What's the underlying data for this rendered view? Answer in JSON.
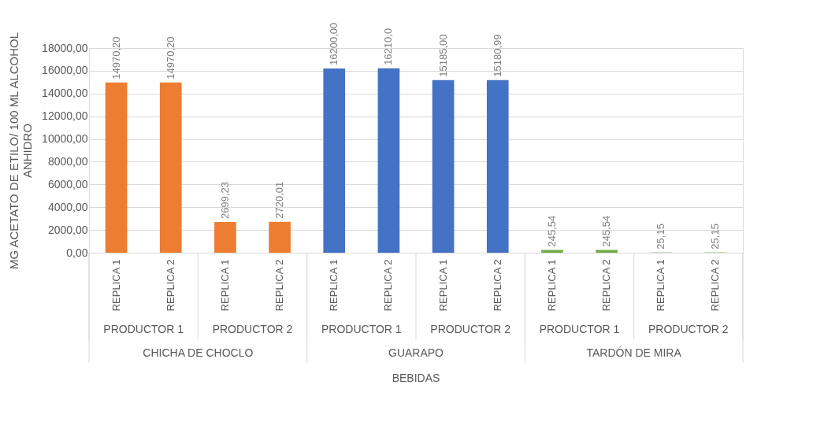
{
  "chart_data": {
    "type": "bar",
    "ylabel": "MG ACETATO DE ETILO/ 100 ML ALCOHOL ANHIDRO",
    "categories": [
      "REPLICA 1",
      "REPLICA 2",
      "REPLICA 1",
      "REPLICA 2",
      "REPLICA 1",
      "REPLICA 2",
      "REPLICA 1",
      "REPLICA 2",
      "REPLICA 1",
      "REPLICA 2",
      "REPLICA 1",
      "REPLICA 2"
    ],
    "series": [
      {
        "color": "#ed7d31",
        "values": [
          14970.2,
          14970.2,
          2699.23,
          2720.01,
          null,
          null,
          null,
          null,
          null,
          null,
          null,
          null
        ],
        "value_labels": [
          "14970,20",
          "14970,20",
          "2699,23",
          "2720,01",
          null,
          null,
          null,
          null,
          null,
          null,
          null,
          null
        ]
      },
      {
        "color": "#4472c4",
        "values": [
          null,
          null,
          null,
          null,
          16200.0,
          16210.0,
          15185.0,
          15180.99,
          null,
          null,
          null,
          null
        ],
        "value_labels": [
          null,
          null,
          null,
          null,
          "16200,00",
          "16210,0",
          "15185,00",
          "15180,99",
          null,
          null,
          null,
          null
        ]
      },
      {
        "color": "#70ad47",
        "values": [
          null,
          null,
          null,
          null,
          null,
          null,
          null,
          null,
          245.54,
          245.54,
          25.15,
          25.15
        ],
        "value_labels": [
          null,
          null,
          null,
          null,
          null,
          null,
          null,
          null,
          "245,54",
          "245,54",
          "25,15",
          "25,15"
        ]
      }
    ],
    "annotations": [
      "PRODUCTOR 1",
      "PRODUCTOR 2",
      "PRODUCTOR 1",
      "PRODUCTOR 2",
      "PRODUCTOR 1",
      "PRODUCTOR 2",
      "CHICHA DE CHOCLO",
      "GUARAPO",
      "TARDÓN DE MIRA",
      "BEBIDAS"
    ],
    "ylim": [
      0,
      18000
    ],
    "yticks": [
      {
        "value": 0,
        "label": "0,00"
      },
      {
        "value": 2000,
        "label": "2000,00"
      },
      {
        "value": 4000,
        "label": "4000,00"
      },
      {
        "value": 6000,
        "label": "6000,00"
      },
      {
        "value": 8000,
        "label": "8000,00"
      },
      {
        "value": 10000,
        "label": "10000,00"
      },
      {
        "value": 12000,
        "label": "12000,00"
      },
      {
        "value": 14000,
        "label": "14000,00"
      },
      {
        "value": 16000,
        "label": "16000,00"
      },
      {
        "value": 18000,
        "label": "18000,00"
      }
    ],
    "grid": "y"
  }
}
